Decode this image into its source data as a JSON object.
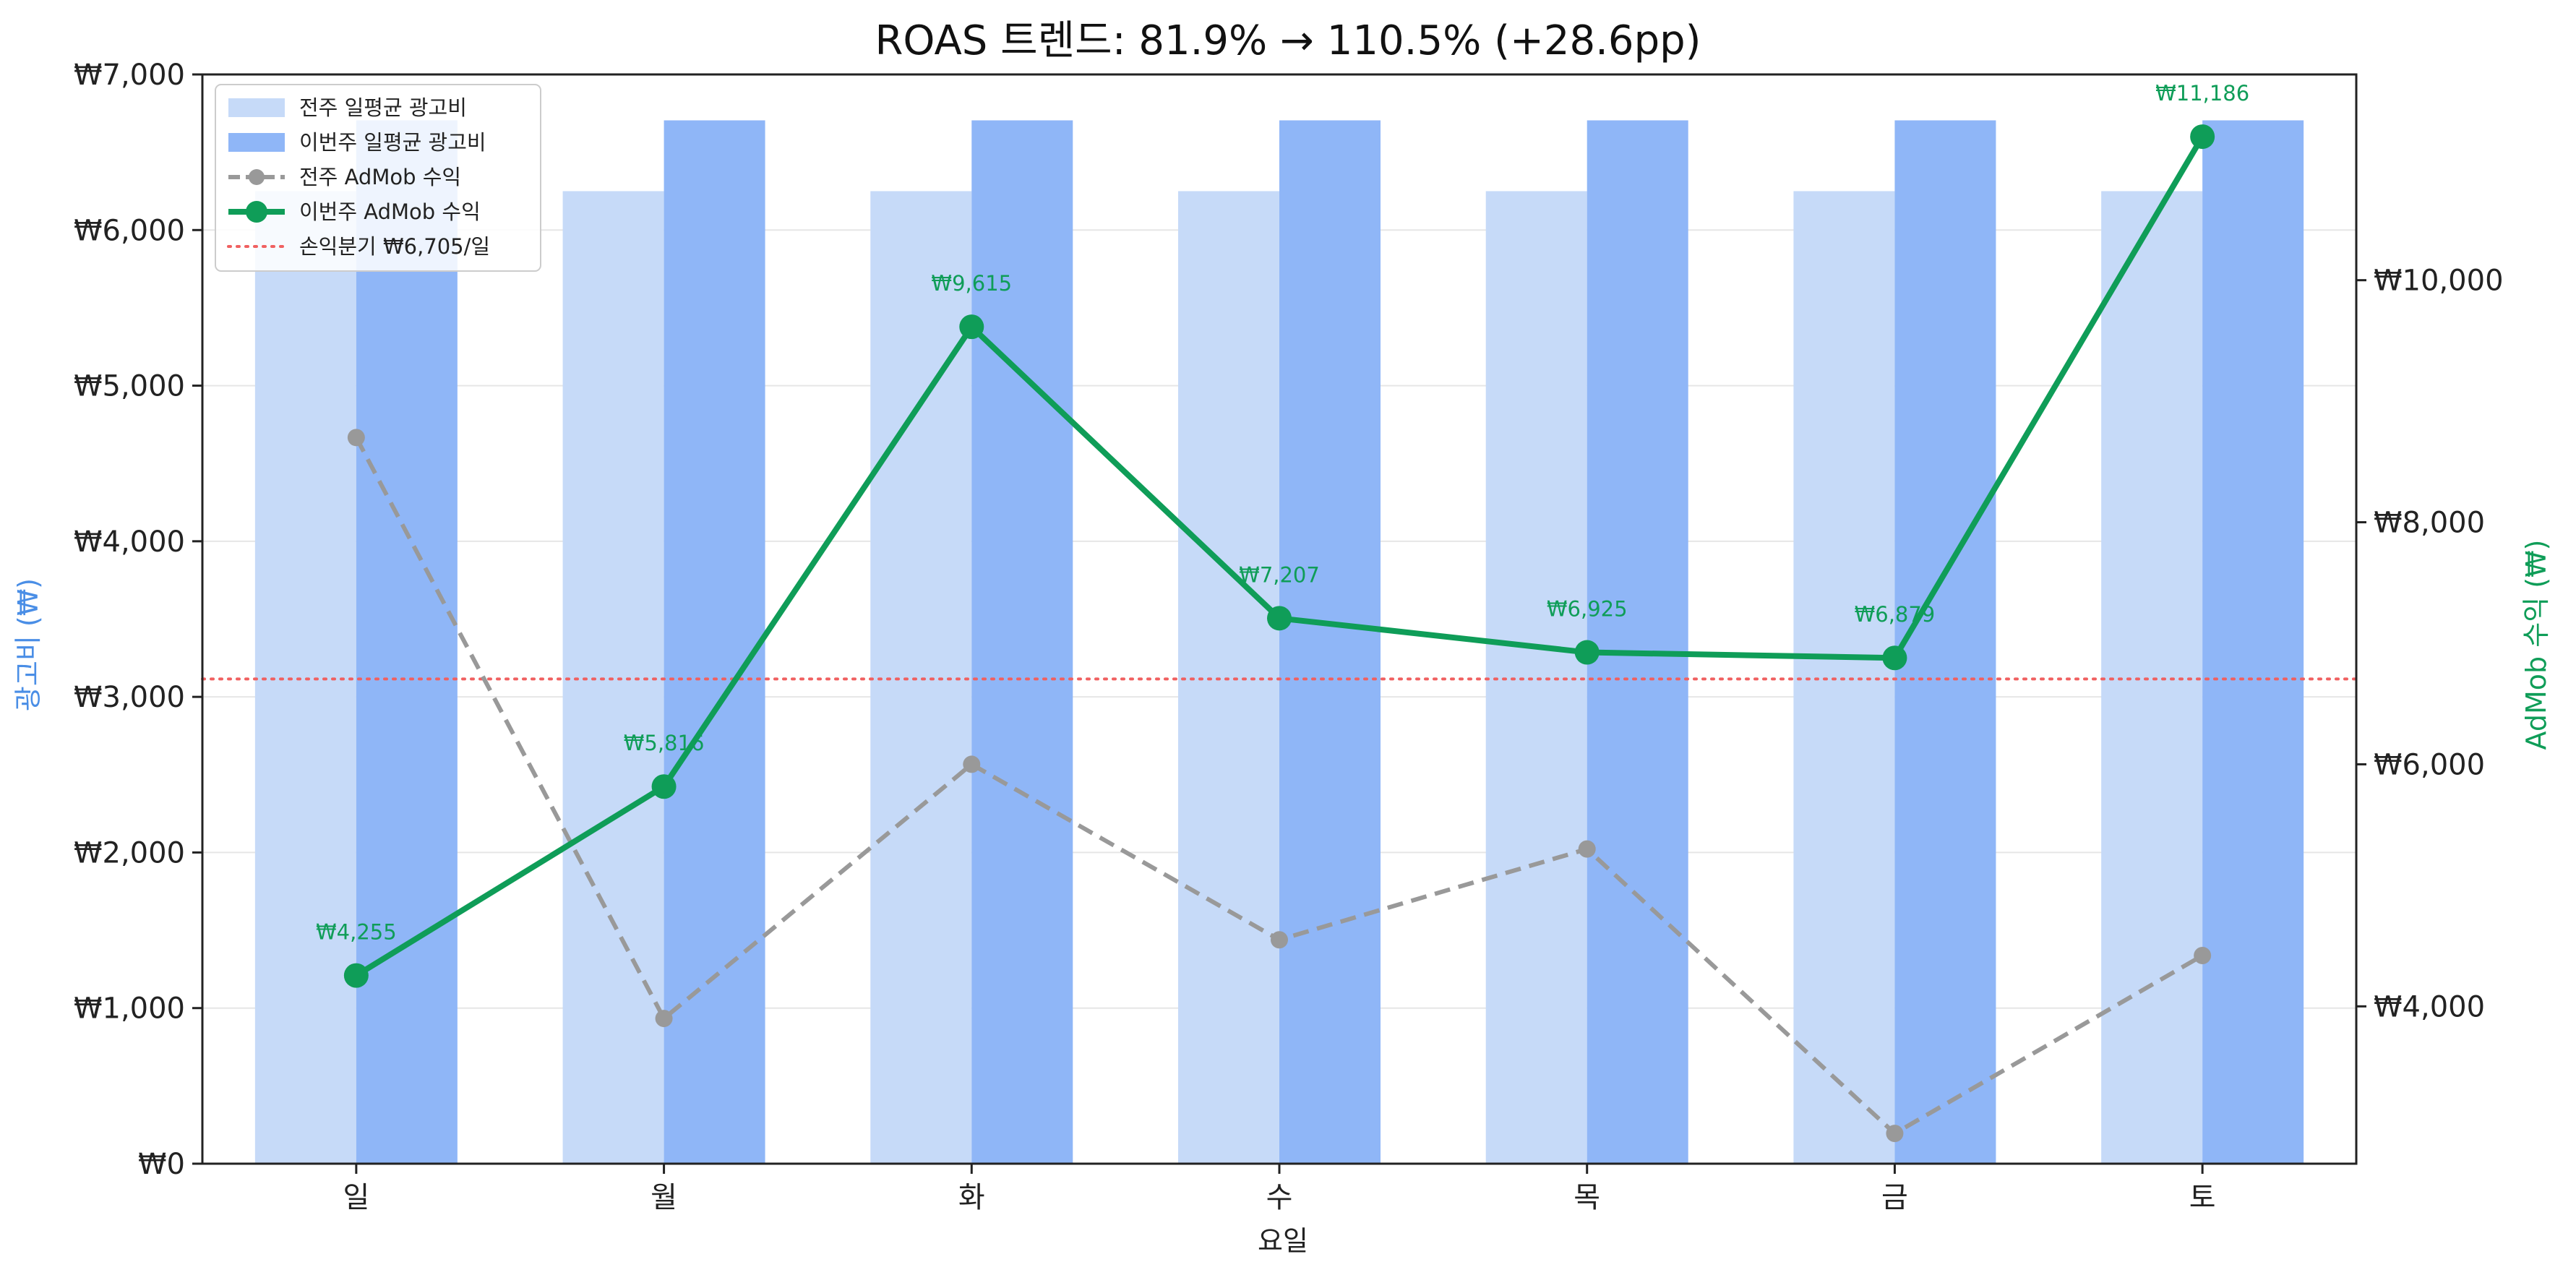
{
  "chart_data": {
    "type": "bar",
    "title": "ROAS 트렌드: 81.9% → 110.5% (+28.6pp)",
    "xlabel": "요일",
    "ylabel": "광고비 (₩)",
    "ylabel_right": "AdMob 수익 (₩)",
    "categories": [
      "일",
      "월",
      "화",
      "수",
      "목",
      "금",
      "토"
    ],
    "ylim": [
      0,
      7000
    ],
    "ylim_right": [
      2700,
      11700
    ],
    "yticks": [
      0,
      1000,
      2000,
      3000,
      4000,
      5000,
      6000,
      7000
    ],
    "ytick_labels": [
      "₩0",
      "₩1,000",
      "₩2,000",
      "₩3,000",
      "₩4,000",
      "₩5,000",
      "₩6,000",
      "₩7,000"
    ],
    "yticks_right": [
      4000,
      6000,
      8000,
      10000
    ],
    "ytick_right_labels": [
      "₩4,000",
      "₩6,000",
      "₩8,000",
      "₩10,000"
    ],
    "grid": true,
    "legend_position": "top-left",
    "series": [
      {
        "name": "전주 일평균 광고비",
        "kind": "bar",
        "axis": "left",
        "color": "#c6daf8",
        "values": [
          6250,
          6250,
          6250,
          6250,
          6250,
          6250,
          6250
        ]
      },
      {
        "name": "이번주 일평균 광고비",
        "kind": "bar",
        "axis": "left",
        "color": "#8fb6f7",
        "values": [
          6705,
          6705,
          6705,
          6705,
          6705,
          6705,
          6705
        ]
      },
      {
        "name": "전주 AdMob 수익",
        "kind": "line",
        "axis": "right",
        "color": "#999999",
        "dashed": true,
        "values": [
          8700,
          3900,
          6000,
          4550,
          5300,
          2950,
          4420
        ]
      },
      {
        "name": "이번주 AdMob 수익",
        "kind": "line",
        "axis": "right",
        "color": "#0f9d58",
        "dashed": false,
        "values": [
          4255,
          5816,
          9615,
          7207,
          6925,
          6879,
          11186
        ],
        "data_labels": [
          "₩4,255",
          "₩5,816",
          "₩9,615",
          "₩7,207",
          "₩6,925",
          "₩6,879",
          "₩11,186"
        ]
      }
    ],
    "reference_line": {
      "name": "손익분기 ₩6,705/일",
      "axis": "right",
      "value": 6705,
      "color": "#f06060"
    }
  }
}
